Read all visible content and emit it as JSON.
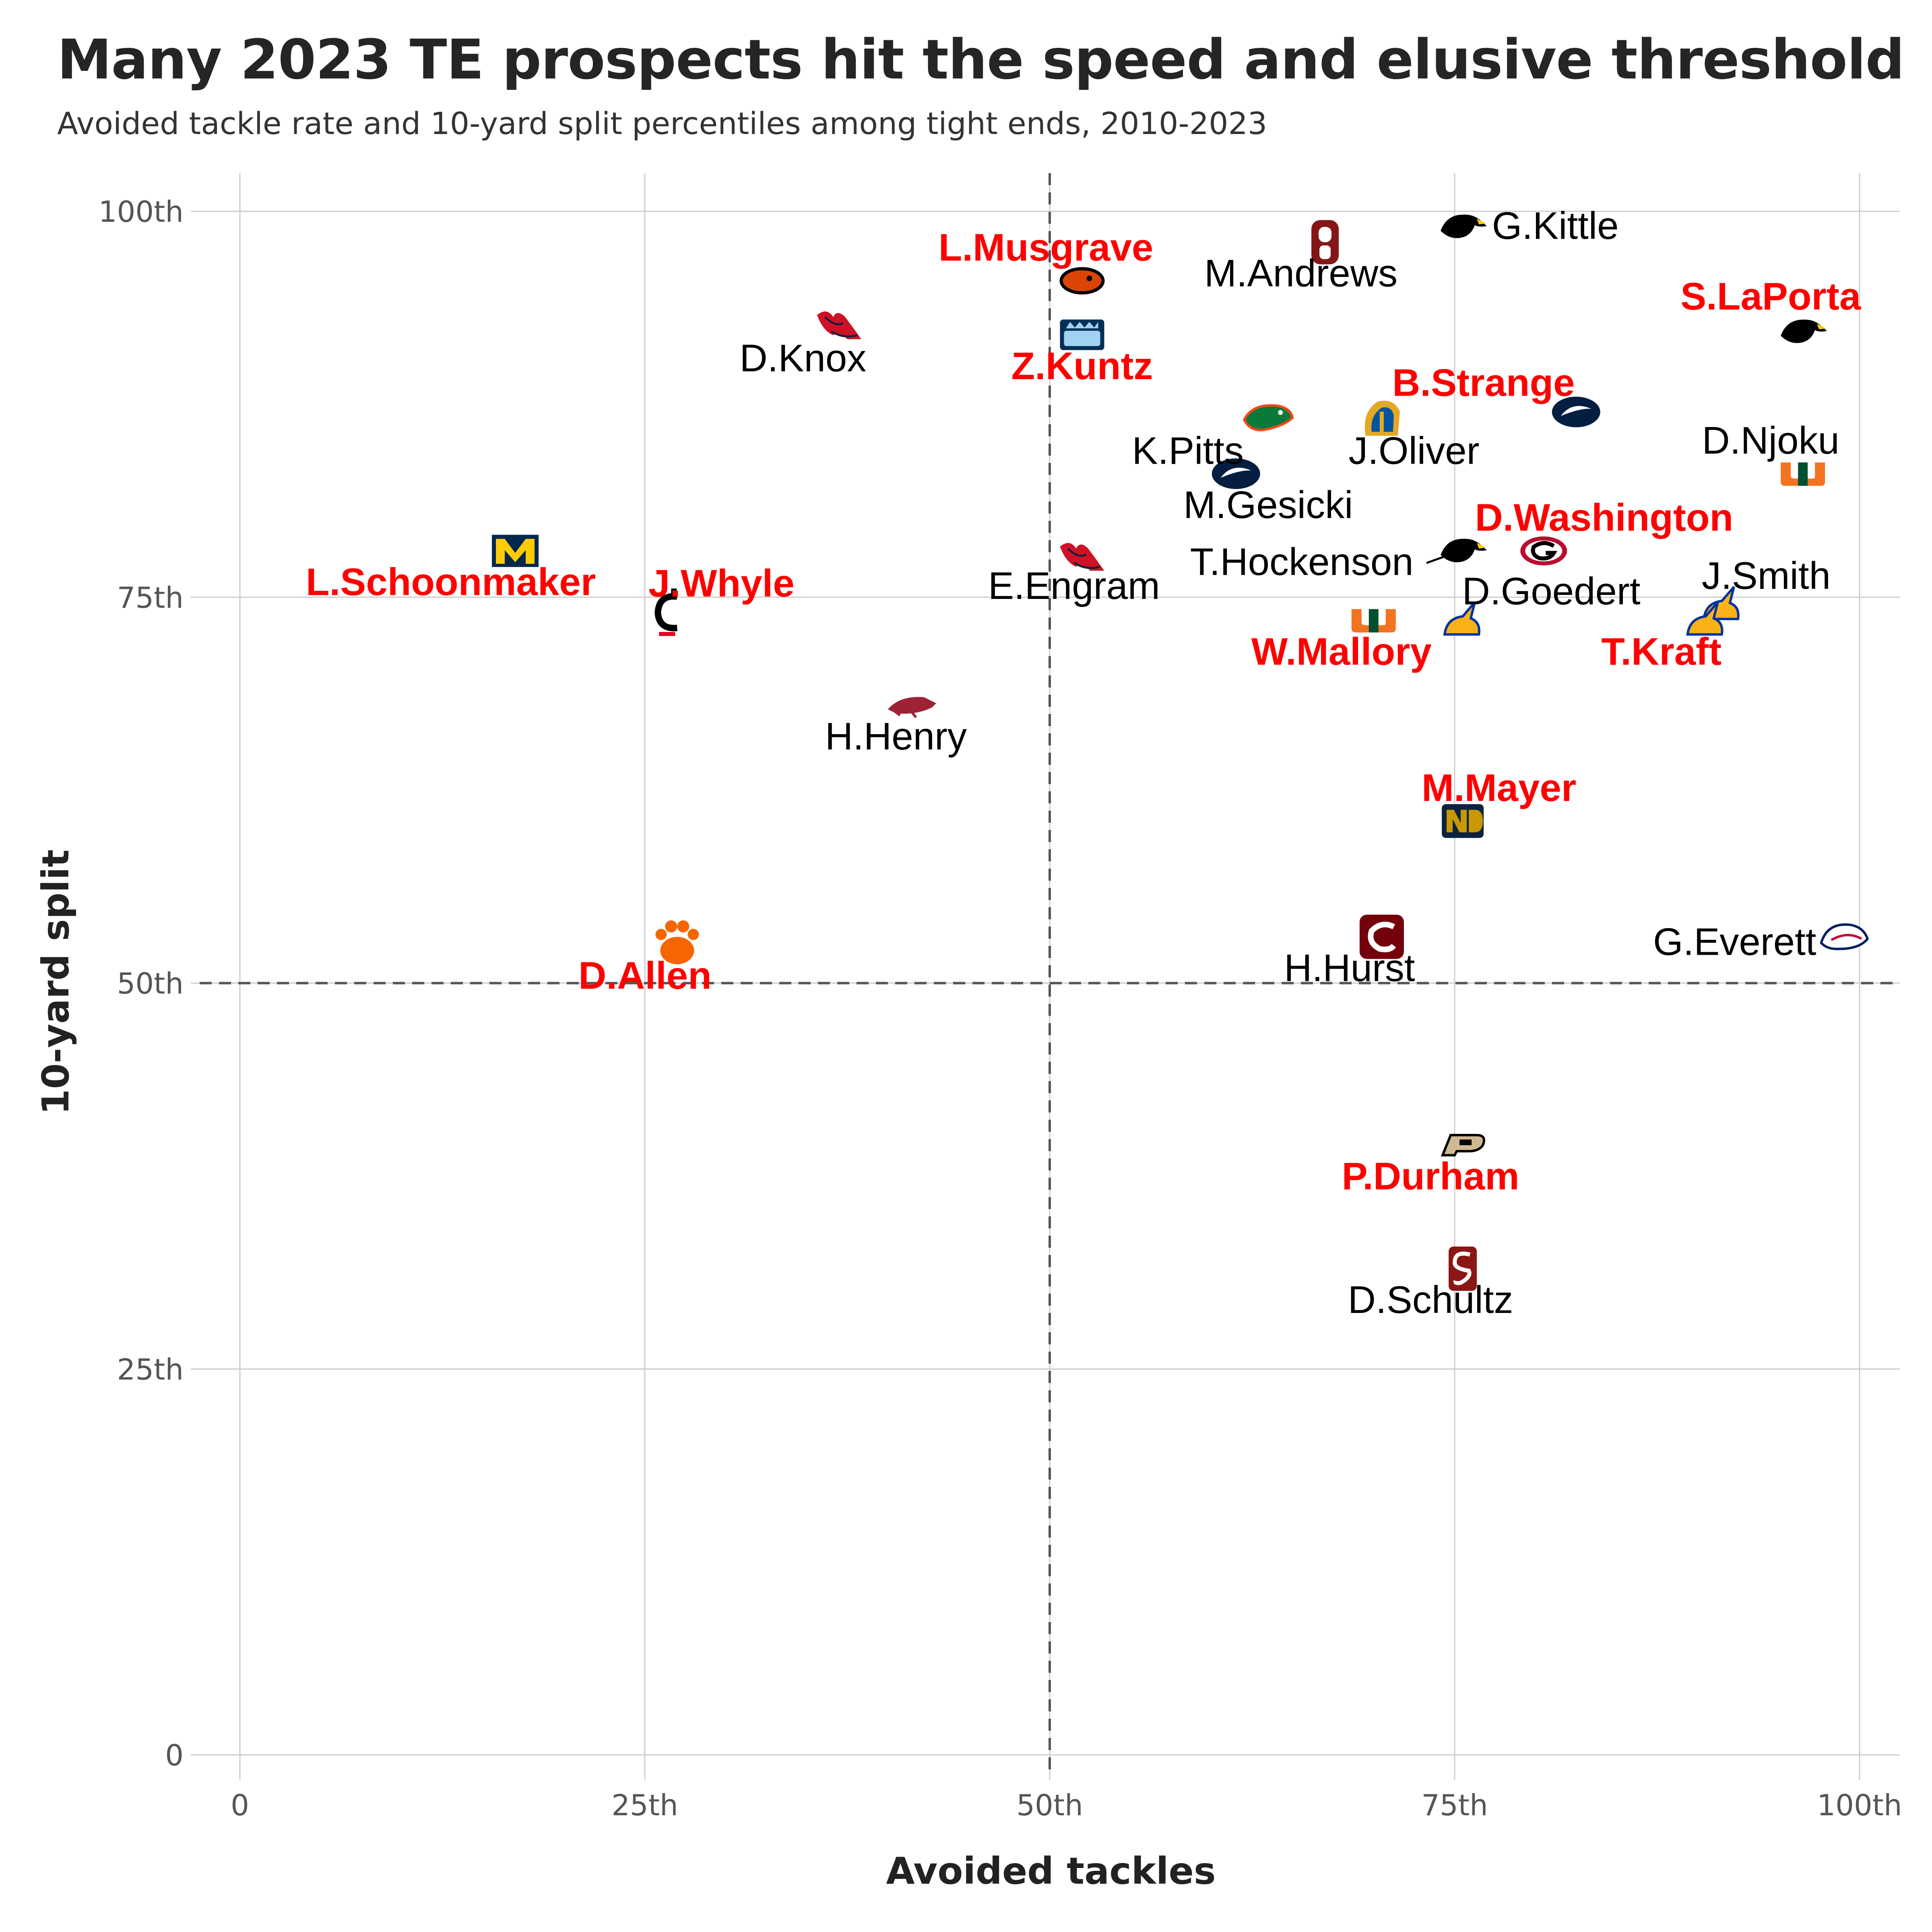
{
  "chart_data": {
    "type": "scatter",
    "title": "Many 2023 TE prospects hit the speed and elusive threshold",
    "subtitle": "Avoided tackle rate and 10-yard split percentiles among tight ends, 2010-2023",
    "xlabel": "Avoided tackles",
    "ylabel": "10-yard split",
    "xlim": [
      0,
      100
    ],
    "ylim": [
      0,
      100
    ],
    "x_ticks": [
      {
        "value": 0,
        "label": "0"
      },
      {
        "value": 25,
        "label": "25th"
      },
      {
        "value": 50,
        "label": "50th"
      },
      {
        "value": 75,
        "label": "75th"
      },
      {
        "value": 100,
        "label": "100th"
      }
    ],
    "y_ticks": [
      {
        "value": 0,
        "label": "0"
      },
      {
        "value": 25,
        "label": "25th"
      },
      {
        "value": 50,
        "label": "50th"
      },
      {
        "value": 75,
        "label": "75th"
      },
      {
        "value": 100,
        "label": "100th"
      }
    ],
    "reference_lines": {
      "x": 50,
      "y": 50,
      "style": "dashed"
    },
    "grid": true,
    "colors": {
      "prospect": "#ff0000",
      "veteran": "#000000"
    },
    "points": [
      {
        "name": "G.Kittle",
        "x": 75.5,
        "y": 99,
        "prospect": false,
        "logo": "iowa-hawkeye-icon"
      },
      {
        "name": "M.Andrews",
        "x": 67,
        "y": 98,
        "prospect": false,
        "logo": "oklahoma-ou-icon"
      },
      {
        "name": "L.Musgrave",
        "x": 52,
        "y": 95.5,
        "prospect": true,
        "logo": "oregon-state-beaver-icon"
      },
      {
        "name": "Z.Kuntz",
        "x": 52,
        "y": 92,
        "prospect": true,
        "logo": "odu-icon"
      },
      {
        "name": "S.LaPorta",
        "x": 96.5,
        "y": 92.2,
        "prospect": true,
        "logo": "iowa-hawkeye-icon"
      },
      {
        "name": "D.Knox",
        "x": 37,
        "y": 92.5,
        "prospect": false,
        "logo": "ole-miss-icon"
      },
      {
        "name": "B.Strange",
        "x": 82.5,
        "y": 87,
        "prospect": true,
        "logo": "penn-state-lion-icon"
      },
      {
        "name": "K.Pitts",
        "x": 63.5,
        "y": 86.5,
        "prospect": false,
        "logo": "florida-gator-icon"
      },
      {
        "name": "J.Oliver",
        "x": 70.5,
        "y": 86.5,
        "prospect": false,
        "logo": "san-jose-state-spartan-icon"
      },
      {
        "name": "D.Njoku",
        "x": 96.5,
        "y": 83,
        "prospect": false,
        "logo": "miami-u-icon"
      },
      {
        "name": "M.Gesicki",
        "x": 61.5,
        "y": 83,
        "prospect": false,
        "logo": "penn-state-lion-icon"
      },
      {
        "name": "D.Washington",
        "x": 80.5,
        "y": 78,
        "prospect": true,
        "logo": "georgia-g-icon"
      },
      {
        "name": "T.Hockenson",
        "x": 75.5,
        "y": 78,
        "prospect": false,
        "logo": "iowa-hawkeye-icon"
      },
      {
        "name": "E.Engram",
        "x": 52,
        "y": 77.5,
        "prospect": false,
        "logo": "ole-miss-icon"
      },
      {
        "name": "L.Schoonmaker",
        "x": 17,
        "y": 78,
        "prospect": true,
        "logo": "michigan-m-icon"
      },
      {
        "name": "J.Whyle",
        "x": 26.5,
        "y": 74,
        "prospect": true,
        "logo": "cincinnati-c-icon"
      },
      {
        "name": "W.Mallory",
        "x": 70,
        "y": 73.5,
        "prospect": true,
        "logo": "miami-u-icon"
      },
      {
        "name": "D.Goedert",
        "x": 75.5,
        "y": 73.5,
        "prospect": false,
        "logo": "jackrabbit-icon"
      },
      {
        "name": "J.Smith",
        "x": 91.5,
        "y": 74.5,
        "prospect": false,
        "logo": "jackrabbit-icon"
      },
      {
        "name": "T.Kraft",
        "x": 90.5,
        "y": 73.5,
        "prospect": true,
        "logo": "jackrabbit-icon"
      },
      {
        "name": "H.Henry",
        "x": 41.5,
        "y": 68,
        "prospect": false,
        "logo": "arkansas-hog-icon"
      },
      {
        "name": "M.Mayer",
        "x": 75.5,
        "y": 60.5,
        "prospect": true,
        "logo": "notre-dame-nd-icon"
      },
      {
        "name": "H.Hurst",
        "x": 70.5,
        "y": 53,
        "prospect": false,
        "logo": "south-carolina-c-icon"
      },
      {
        "name": "G.Everett",
        "x": 99,
        "y": 53,
        "prospect": false,
        "logo": "south-alabama-jaguar-icon"
      },
      {
        "name": "D.Allen",
        "x": 27,
        "y": 52.5,
        "prospect": true,
        "logo": "clemson-paw-icon"
      },
      {
        "name": "P.Durham",
        "x": 75.5,
        "y": 39.5,
        "prospect": true,
        "logo": "purdue-p-icon"
      },
      {
        "name": "D.Schultz",
        "x": 75.5,
        "y": 31.5,
        "prospect": false,
        "logo": "stanford-s-icon"
      }
    ]
  }
}
